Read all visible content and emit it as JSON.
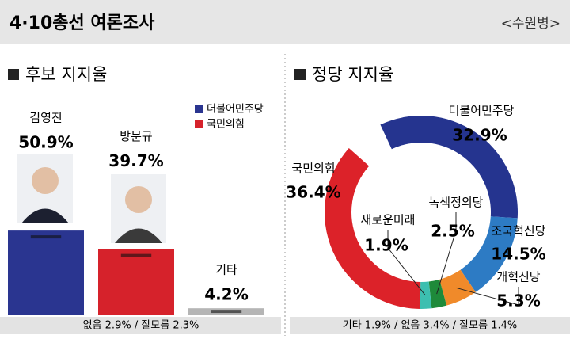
{
  "header": {
    "title": "4·10총선 여론조사",
    "region": "<수원병>"
  },
  "chart_data": [
    {
      "type": "bar",
      "title": "후보 지지율",
      "categories": [
        "김영진",
        "방문규",
        "기타"
      ],
      "values": [
        50.9,
        39.7,
        4.2
      ],
      "value_labels": [
        "50.9%",
        "39.7%",
        "4.2%"
      ],
      "colors": [
        "#2a3590",
        "#d6222b",
        "#b5b5b5"
      ],
      "legend": [
        {
          "name": "더불어민주당",
          "color": "#2a3590"
        },
        {
          "name": "국민의힘",
          "color": "#d6222b"
        }
      ],
      "note": "없음 2.9% / 잘모름 2.3%"
    },
    {
      "type": "pie",
      "title": "정당 지지율",
      "categories": [
        "더불어민주당",
        "조국혁신당",
        "개혁신당",
        "녹색정의당",
        "새로운미래",
        "국민의힘"
      ],
      "values": [
        32.9,
        14.5,
        5.3,
        2.5,
        1.9,
        36.4
      ],
      "value_labels": [
        "32.9%",
        "14.5%",
        "5.3%",
        "2.5%",
        "1.9%",
        "36.4%"
      ],
      "colors": [
        "#25348f",
        "#2d7bc4",
        "#f08a2a",
        "#1e8a3a",
        "#3cbfb0",
        "#dc2229"
      ],
      "note": "기타 1.9% / 없음 3.4% / 잘모름 1.4%"
    }
  ]
}
